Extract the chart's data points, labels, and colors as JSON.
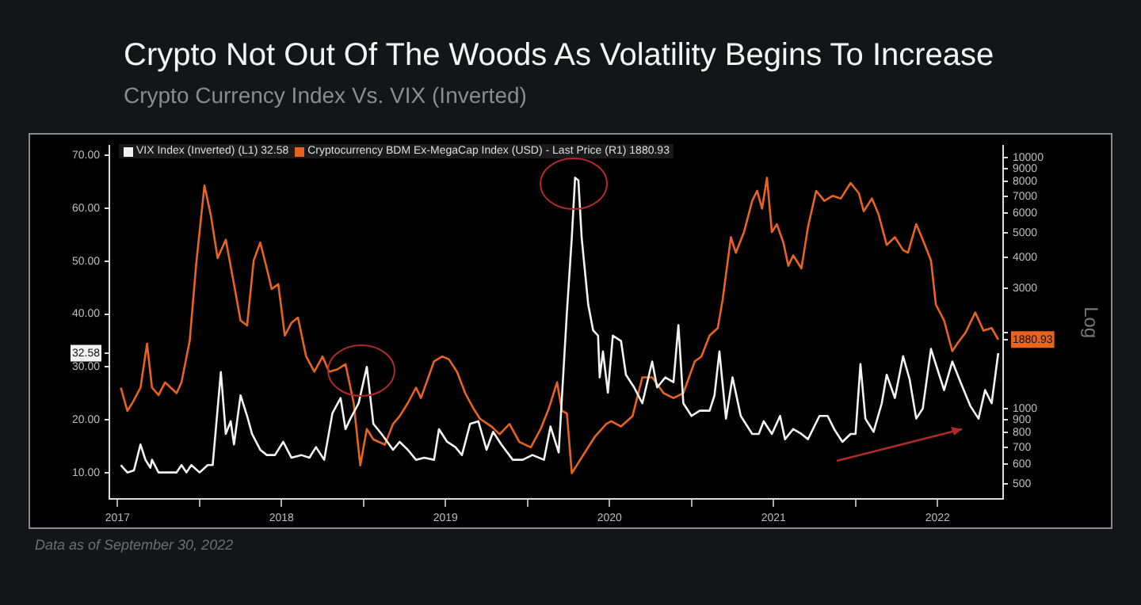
{
  "chart_data": {
    "type": "line",
    "title": "Crypto Not Out Of The Woods As Volatility Begins To Increase",
    "subtitle": "Crypto Currency Index Vs. VIX (Inverted)",
    "y2label": "Log",
    "annotations": [
      "Data as of September 30, 2022"
    ],
    "legend": "top left",
    "marker": "none",
    "log": "y2",
    "xlim": [
      2017.45,
      2022.9
    ],
    "xticks": [
      {
        "value": 2017.5,
        "label": "2017"
      },
      {
        "value": 2018,
        "label": null
      },
      {
        "value": 2018.5,
        "label": "2018"
      },
      {
        "value": 2019,
        "label": null
      },
      {
        "value": 2019.5,
        "label": "2019"
      },
      {
        "value": 2020,
        "label": null
      },
      {
        "value": 2020.5,
        "label": "2020"
      },
      {
        "value": 2021,
        "label": null
      },
      {
        "value": 2021.5,
        "label": "2021"
      },
      {
        "value": 2022,
        "label": null
      },
      {
        "value": 2022.5,
        "label": "2022"
      }
    ],
    "ylim": [
      5,
      71.8
    ],
    "yticks": [
      {
        "value": 10,
        "label": "10.00"
      },
      {
        "value": 20,
        "label": "20.00"
      },
      {
        "value": 30,
        "label": "30.00"
      },
      32.58,
      {
        "value": 40,
        "label": "40.00"
      },
      {
        "value": 50,
        "label": "50.00"
      },
      {
        "value": 60,
        "label": "60.00"
      },
      {
        "value": 70,
        "label": "70.00"
      }
    ],
    "y2lim": [
      436,
      11100
    ],
    "y2ticks": [
      500,
      600,
      700,
      800,
      900,
      1000,
      1880.93,
      {
        "value": 2000,
        "label": null
      },
      3000,
      4000,
      5000,
      6000,
      7000,
      8000,
      9000,
      10000
    ],
    "series": [
      {
        "name": "VIX Index (Inverted) (L1) 32.58",
        "color": "#f2f2f2",
        "axis": "y",
        "x": [
          2017.52,
          2017.56,
          2017.6,
          2017.64,
          2017.67,
          2017.7,
          2017.71,
          2017.75,
          2017.79,
          2017.86,
          2017.89,
          2017.92,
          2017.95,
          2018.0,
          2018.05,
          2018.08,
          2018.13,
          2018.16,
          2018.19,
          2018.21,
          2018.25,
          2018.29,
          2018.32,
          2018.37,
          2018.41,
          2018.46,
          2018.51,
          2018.56,
          2018.62,
          2018.67,
          2018.71,
          2018.76,
          2018.81,
          2018.86,
          2018.89,
          2018.92,
          2018.97,
          2019.02,
          2019.06,
          2019.11,
          2019.18,
          2019.22,
          2019.27,
          2019.32,
          2019.37,
          2019.43,
          2019.46,
          2019.51,
          2019.56,
          2019.6,
          2019.65,
          2019.7,
          2019.75,
          2019.79,
          2019.84,
          2019.91,
          2019.97,
          2020.03,
          2020.1,
          2020.14,
          2020.19,
          2020.24,
          2020.27,
          2020.29,
          2020.31,
          2020.33,
          2020.37,
          2020.4,
          2020.43,
          2020.44,
          2020.46,
          2020.49,
          2020.52,
          2020.57,
          2020.6,
          2020.65,
          2020.7,
          2020.76,
          2020.79,
          2020.84,
          2020.89,
          2020.92,
          2020.95,
          2021.0,
          2021.05,
          2021.11,
          2021.14,
          2021.17,
          2021.21,
          2021.25,
          2021.3,
          2021.37,
          2021.41,
          2021.44,
          2021.49,
          2021.54,
          2021.57,
          2021.62,
          2021.67,
          2021.71,
          2021.78,
          2021.83,
          2021.87,
          2021.92,
          2021.97,
          2022.0,
          2022.03,
          2022.06,
          2022.11,
          2022.16,
          2022.19,
          2022.24,
          2022.29,
          2022.33,
          2022.37,
          2022.41,
          2022.46,
          2022.51,
          2022.54,
          2022.59,
          2022.64,
          2022.7,
          2022.75,
          2022.79,
          2022.83,
          2022.87
        ],
        "values": [
          11.4,
          10.0,
          10.4,
          15.3,
          12.4,
          10.9,
          12.4,
          10.0,
          10.0,
          10.0,
          11.4,
          10.0,
          11.4,
          10.0,
          11.4,
          11.4,
          29.0,
          17.3,
          19.7,
          15.3,
          24.6,
          20.7,
          17.3,
          14.3,
          13.3,
          13.3,
          15.8,
          12.8,
          13.3,
          12.8,
          14.8,
          12.4,
          21.2,
          24.1,
          18.2,
          20.2,
          23.1,
          30.0,
          19.2,
          17.3,
          14.3,
          15.8,
          14.3,
          12.4,
          12.8,
          12.4,
          18.2,
          15.8,
          14.8,
          13.3,
          19.2,
          19.7,
          14.3,
          17.7,
          15.3,
          12.4,
          12.4,
          13.3,
          12.4,
          18.7,
          13.8,
          40.3,
          54.5,
          65.8,
          65.3,
          54.5,
          41.8,
          36.9,
          35.9,
          28.0,
          32.9,
          25.1,
          35.9,
          34.9,
          28.5,
          26.1,
          23.1,
          31.0,
          26.1,
          28.0,
          27.1,
          37.9,
          23.1,
          20.7,
          21.7,
          21.7,
          24.6,
          32.9,
          20.2,
          28.0,
          20.7,
          17.3,
          17.3,
          19.7,
          17.3,
          20.7,
          16.3,
          18.2,
          17.3,
          16.3,
          20.7,
          20.7,
          18.2,
          15.8,
          17.3,
          17.3,
          30.5,
          20.2,
          17.7,
          23.1,
          28.5,
          24.1,
          32.0,
          27.6,
          20.2,
          22.1,
          33.4,
          28.5,
          25.6,
          31.0,
          27.1,
          22.6,
          20.2,
          25.6,
          23.1,
          32.58
        ]
      },
      {
        "name": "Cryptocurrency BDM Ex-MegaCap Index (USD) - Last Price (R1) 1880.93",
        "color": "#e8641e",
        "axis": "y2",
        "x": [
          2017.52,
          2017.56,
          2017.59,
          2017.64,
          2017.68,
          2017.71,
          2017.75,
          2017.79,
          2017.86,
          2017.89,
          2017.94,
          2017.98,
          2018.03,
          2018.07,
          2018.11,
          2018.16,
          2018.21,
          2018.25,
          2018.29,
          2018.33,
          2018.37,
          2018.41,
          2018.44,
          2018.48,
          2018.52,
          2018.56,
          2018.6,
          2018.65,
          2018.7,
          2018.75,
          2018.79,
          2018.84,
          2018.89,
          2018.94,
          2018.98,
          2019.02,
          2019.06,
          2019.13,
          2019.18,
          2019.22,
          2019.27,
          2019.32,
          2019.35,
          2019.43,
          2019.48,
          2019.52,
          2019.57,
          2019.62,
          2019.67,
          2019.71,
          2019.78,
          2019.83,
          2019.89,
          2019.95,
          2020.02,
          2020.08,
          2020.13,
          2020.18,
          2020.21,
          2020.24,
          2020.27,
          2020.3,
          2020.35,
          2020.41,
          2020.48,
          2020.51,
          2020.57,
          2020.64,
          2020.7,
          2020.76,
          2020.83,
          2020.89,
          2020.95,
          2021.02,
          2021.06,
          2021.11,
          2021.16,
          2021.19,
          2021.24,
          2021.27,
          2021.32,
          2021.37,
          2021.4,
          2021.43,
          2021.46,
          2021.49,
          2021.52,
          2021.56,
          2021.59,
          2021.62,
          2021.67,
          2021.71,
          2021.76,
          2021.81,
          2021.86,
          2021.91,
          2021.97,
          2022.02,
          2022.05,
          2022.1,
          2022.14,
          2022.19,
          2022.24,
          2022.29,
          2022.32,
          2022.37,
          2022.41,
          2022.46,
          2022.49,
          2022.54,
          2022.59,
          2022.62,
          2022.67,
          2022.73,
          2022.78,
          2022.83,
          2022.87
        ],
        "values": [
          1210,
          977,
          1050,
          1210,
          1810,
          1210,
          1130,
          1270,
          1150,
          1270,
          1860,
          3790,
          7730,
          5820,
          3970,
          4700,
          3130,
          2240,
          2140,
          3880,
          4580,
          3610,
          2990,
          3130,
          1950,
          2190,
          2300,
          1610,
          1400,
          1610,
          1400,
          1430,
          1500,
          1050,
          593,
          828,
          752,
          717,
          867,
          931,
          1050,
          1210,
          1100,
          1540,
          1610,
          1570,
          1400,
          1150,
          1000,
          910,
          847,
          789,
          867,
          735,
          700,
          828,
          1000,
          1270,
          977,
          955,
          552,
          593,
          668,
          770,
          867,
          889,
          847,
          931,
          1330,
          1330,
          1150,
          1100,
          1150,
          1540,
          1610,
          1950,
          2090,
          2720,
          4810,
          4170,
          5040,
          6710,
          7360,
          6250,
          8300,
          5040,
          5420,
          4580,
          3700,
          4070,
          3610,
          5280,
          7360,
          6710,
          7030,
          6860,
          7910,
          7200,
          6100,
          6860,
          5940,
          4480,
          4810,
          4270,
          4170,
          5420,
          4700,
          3880,
          2590,
          2240,
          1690,
          1810,
          2000,
          2410,
          2040,
          2090,
          1880.93
        ]
      }
    ]
  }
}
